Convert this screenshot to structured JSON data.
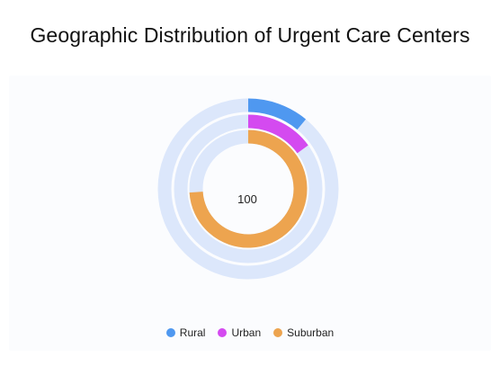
{
  "chart_data": {
    "type": "radialBar",
    "title": "Geographic Distribution of Urgent Care Centers",
    "categories": [
      "Rural",
      "Urban",
      "Suburban"
    ],
    "values": [
      11,
      15,
      74
    ],
    "max": 100,
    "center_label": "100",
    "legend_position": "bottom",
    "colors": {
      "Rural": "#4f98f0",
      "Urban": "#d44af0",
      "Suburban": "#eda44f",
      "track": "#dce7fb"
    }
  }
}
